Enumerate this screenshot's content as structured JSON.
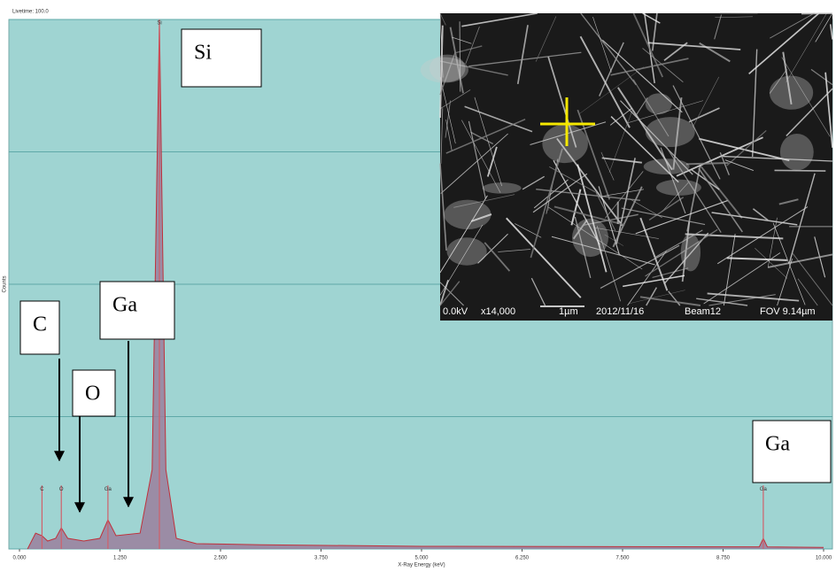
{
  "header": {
    "line1": "Livetime: 100.0"
  },
  "inset": {
    "caption": [
      "0.0kV",
      "x14,000",
      "1µm",
      "2012/11/16",
      "Beam12",
      "FOV 9.14µm"
    ]
  },
  "chart_data": {
    "type": "area",
    "xlabel": "X-Ray Energy (keV)",
    "ylabel": "Counts",
    "x": [
      0.1,
      0.2,
      0.28,
      0.35,
      0.45,
      0.52,
      0.6,
      0.8,
      1.0,
      1.1,
      1.2,
      1.5,
      1.65,
      1.74,
      1.82,
      1.95,
      2.2,
      3.0,
      5.0,
      9.2,
      9.25,
      9.3,
      10.0
    ],
    "values": [
      0,
      3,
      2.5,
      1.5,
      2,
      4,
      2,
      1.5,
      2,
      5.5,
      2.5,
      3,
      15,
      100,
      15,
      2,
      1,
      0.8,
      0.5,
      0.4,
      2,
      0.4,
      0.3
    ],
    "color": "#9a7f9e",
    "line_color": "#c0303a",
    "xlim": [
      0,
      10
    ],
    "xticks": [
      {
        "value": 0,
        "label": "0.000"
      },
      {
        "value": 1.25,
        "label": "1.250"
      },
      {
        "value": 2.5,
        "label": "2.500"
      },
      {
        "value": 3.75,
        "label": "3.750"
      },
      {
        "value": 5,
        "label": "5.000"
      },
      {
        "value": 6.25,
        "label": "6.250"
      },
      {
        "value": 7.5,
        "label": "7.500"
      },
      {
        "value": 8.75,
        "label": "8.750"
      },
      {
        "value": 10,
        "label": "10.000"
      }
    ],
    "ylim": [
      0,
      100
    ],
    "yticks": [
      0,
      25,
      50,
      75,
      100
    ],
    "grid": true,
    "peak_markers": [
      {
        "label": "C",
        "energy": 0.28,
        "height": 12
      },
      {
        "label": "O",
        "energy": 0.52,
        "height": 12
      },
      {
        "label": "Ga",
        "energy": 1.1,
        "height": 12
      },
      {
        "label": "Si",
        "energy": 1.74,
        "height": 100
      },
      {
        "label": "Ga",
        "energy": 9.25,
        "height": 12
      }
    ],
    "annotations": [
      "Si",
      "C",
      "Ga",
      "O",
      "Ga"
    ]
  }
}
